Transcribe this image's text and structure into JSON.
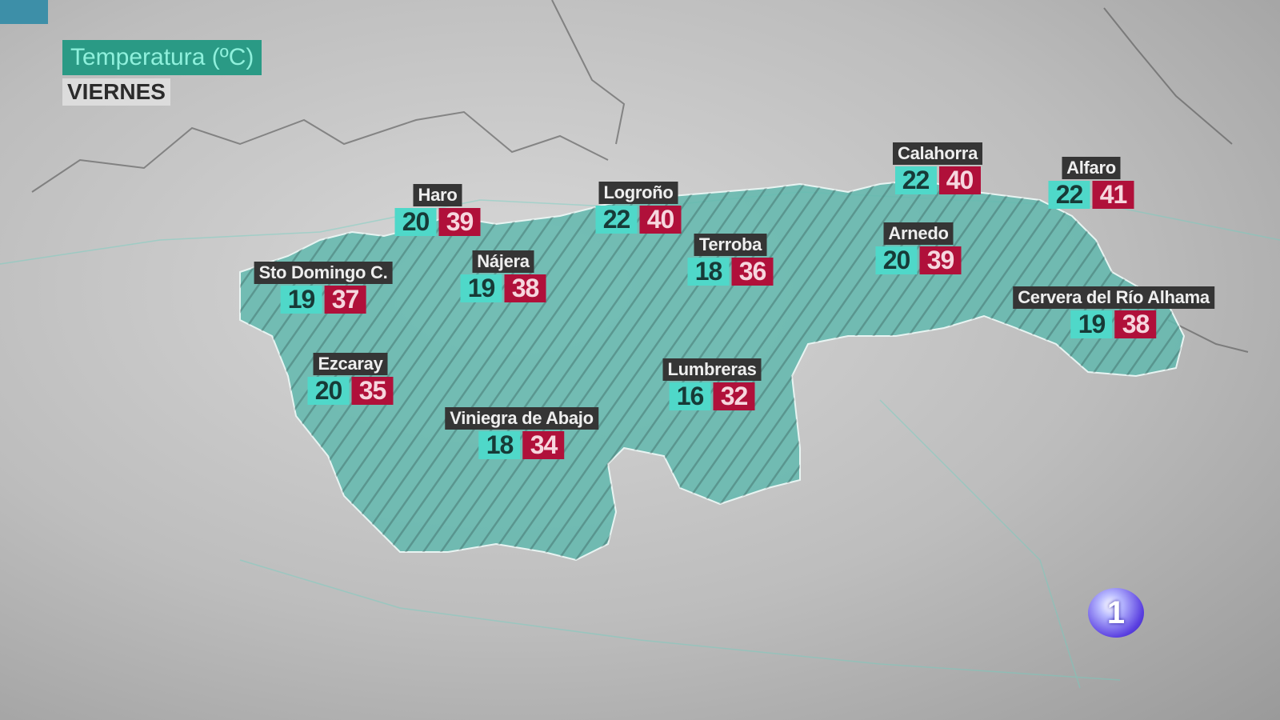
{
  "header": {
    "title": "Temperatura (ºC)",
    "day": "VIERNES"
  },
  "colors": {
    "min_box": "#4fd8c9",
    "max_box": "#b0103a",
    "label_bg": "#353535",
    "region": "#5fb3aa",
    "title_bg": "#2a9a85"
  },
  "stations": [
    {
      "name": "Haro",
      "min": "20",
      "max": "39"
    },
    {
      "name": "Logroño",
      "min": "22",
      "max": "40"
    },
    {
      "name": "Calahorra",
      "min": "22",
      "max": "40"
    },
    {
      "name": "Alfaro",
      "min": "22",
      "max": "41"
    },
    {
      "name": "Terroba",
      "min": "18",
      "max": "36"
    },
    {
      "name": "Arnedo",
      "min": "20",
      "max": "39"
    },
    {
      "name": "Sto Domingo C.",
      "min": "19",
      "max": "37"
    },
    {
      "name": "Nájera",
      "min": "19",
      "max": "38"
    },
    {
      "name": "Cervera del Río Alhama",
      "min": "19",
      "max": "38"
    },
    {
      "name": "Ezcaray",
      "min": "20",
      "max": "35"
    },
    {
      "name": "Lumbreras",
      "min": "16",
      "max": "32"
    },
    {
      "name": "Viniegra de Abajo",
      "min": "18",
      "max": "34"
    }
  ],
  "logo": {
    "text": "1",
    "icon": "tve-channel-1-logo"
  }
}
